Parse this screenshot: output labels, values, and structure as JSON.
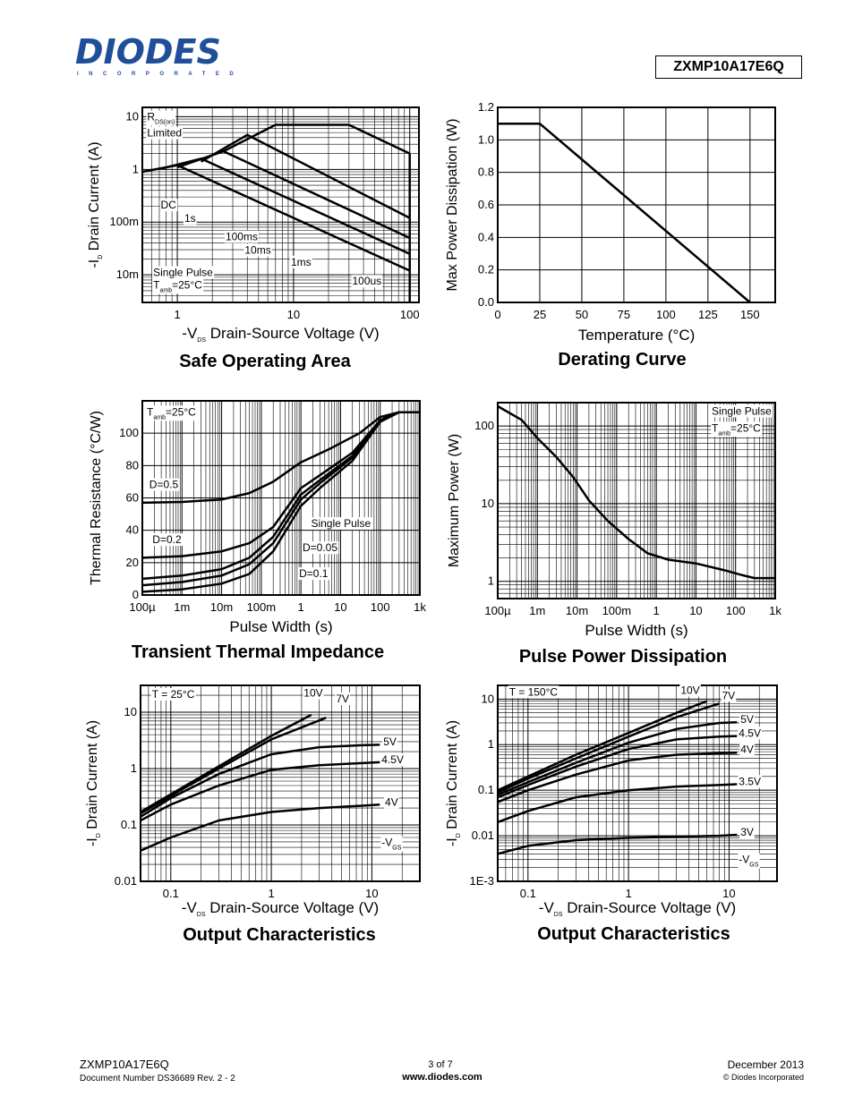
{
  "header": {
    "logo_text": "DIODES",
    "logo_sub": "INCORPORATED",
    "part_number": "ZXMP10A17E6Q"
  },
  "footer": {
    "part": "ZXMP10A17E6Q",
    "doc": "Document Number DS36689  Rev. 2 - 2",
    "page": "3 of 7",
    "site": "www.diodes.com",
    "date": "December 2013",
    "copyright": "© Diodes Incorporated"
  },
  "chart_data": [
    {
      "id": "soa",
      "type": "line",
      "title": "Safe Operating Area",
      "xlabel_prefix": "-V",
      "xlabel_sub": "DS",
      "xlabel": "Drain-Source Voltage (V)",
      "ylabel_prefix": "-I",
      "ylabel_sub": "D",
      "ylabel": "Drain Current (A)",
      "xscale": "log",
      "yscale": "log",
      "xlim": [
        0.5,
        120
      ],
      "ylim": [
        0.003,
        15
      ],
      "xticks": [
        {
          "v": 1,
          "l": "1"
        },
        {
          "v": 10,
          "l": "10"
        },
        {
          "v": 100,
          "l": "100"
        }
      ],
      "yticks": [
        {
          "v": 10,
          "l": "10"
        },
        {
          "v": 1,
          "l": "1"
        },
        {
          "v": 0.1,
          "l": "100m"
        },
        {
          "v": 0.01,
          "l": "10m"
        }
      ],
      "series": [
        {
          "x": [
            0.5,
            1,
            100
          ],
          "y": [
            0.9,
            1.2,
            0.012
          ]
        },
        {
          "x": [
            0.75,
            1.6,
            100
          ],
          "y": [
            1.05,
            1.6,
            0.025
          ]
        },
        {
          "x": [
            1,
            2.5,
            100
          ],
          "y": [
            1.1,
            2.2,
            0.05
          ]
        },
        {
          "x": [
            1.6,
            4,
            100
          ],
          "y": [
            1.4,
            4.5,
            0.12
          ]
        },
        {
          "x": [
            2.5,
            7,
            30,
            100
          ],
          "y": [
            2.2,
            7,
            7,
            2
          ]
        },
        {
          "x": [
            100,
            100
          ],
          "y": [
            2,
            0.003
          ]
        }
      ],
      "annotations": [
        {
          "text": "R",
          "sub": "DS(on)",
          "x": 0.55,
          "y": 8.5
        },
        {
          "text": "Limited",
          "x": 0.55,
          "y": 4.2
        },
        {
          "text": "DC",
          "x": 0.72,
          "y": 0.18
        },
        {
          "text": "1s",
          "x": 1.15,
          "y": 0.1
        },
        {
          "text": "100ms",
          "x": 2.6,
          "y": 0.045
        },
        {
          "text": "10ms",
          "x": 3.8,
          "y": 0.025
        },
        {
          "text": "1ms",
          "x": 9.5,
          "y": 0.015
        },
        {
          "text": "100us",
          "x": 32,
          "y": 0.0065
        },
        {
          "text": "Single Pulse",
          "x": 0.62,
          "y": 0.0095
        },
        {
          "text": "T",
          "sub": "amb",
          "after": "=25°C",
          "x": 0.62,
          "y": 0.0055
        }
      ]
    },
    {
      "id": "derating",
      "type": "line",
      "title": "Derating Curve",
      "xlabel": "Temperature (°C)",
      "ylabel": "Max Power Dissipation (W)",
      "xscale": "linear",
      "yscale": "linear",
      "xlim": [
        0,
        165
      ],
      "ylim": [
        0,
        1.2
      ],
      "xticks": [
        {
          "v": 0,
          "l": "0"
        },
        {
          "v": 25,
          "l": "25"
        },
        {
          "v": 50,
          "l": "50"
        },
        {
          "v": 75,
          "l": "75"
        },
        {
          "v": 100,
          "l": "100"
        },
        {
          "v": 125,
          "l": "125"
        },
        {
          "v": 150,
          "l": "150"
        }
      ],
      "yticks": [
        {
          "v": 0,
          "l": "0.0"
        },
        {
          "v": 0.2,
          "l": "0.2"
        },
        {
          "v": 0.4,
          "l": "0.4"
        },
        {
          "v": 0.6,
          "l": "0.6"
        },
        {
          "v": 0.8,
          "l": "0.8"
        },
        {
          "v": 1.0,
          "l": "1.0"
        },
        {
          "v": 1.2,
          "l": "1.2"
        }
      ],
      "series": [
        {
          "x": [
            0,
            25,
            150
          ],
          "y": [
            1.1,
            1.1,
            0
          ]
        }
      ],
      "annotations": []
    },
    {
      "id": "thermal",
      "type": "line",
      "title": "Transient Thermal Impedance",
      "xlabel": "Pulse Width (s)",
      "ylabel": "Thermal Resistance (°C/W)",
      "xscale": "log",
      "yscale": "linear",
      "xlim": [
        0.0001,
        1000
      ],
      "ylim": [
        0,
        120
      ],
      "xticks": [
        {
          "v": 0.0001,
          "l": "100µ"
        },
        {
          "v": 0.001,
          "l": "1m"
        },
        {
          "v": 0.01,
          "l": "10m"
        },
        {
          "v": 0.1,
          "l": "100m"
        },
        {
          "v": 1,
          "l": "1"
        },
        {
          "v": 10,
          "l": "10"
        },
        {
          "v": 100,
          "l": "100"
        },
        {
          "v": 1000,
          "l": "1k"
        }
      ],
      "yticks": [
        {
          "v": 0,
          "l": "0"
        },
        {
          "v": 20,
          "l": "20"
        },
        {
          "v": 40,
          "l": "40"
        },
        {
          "v": 60,
          "l": "60"
        },
        {
          "v": 80,
          "l": "80"
        },
        {
          "v": 100,
          "l": "100"
        }
      ],
      "series": [
        {
          "x": [
            0.0001,
            0.001,
            0.01,
            0.05,
            0.2,
            1,
            5,
            30,
            100,
            300,
            1000
          ],
          "y": [
            57,
            57.5,
            59,
            63,
            70,
            82,
            90,
            100,
            110,
            113,
            113
          ]
        },
        {
          "x": [
            0.0001,
            0.001,
            0.01,
            0.05,
            0.2,
            1,
            3,
            20,
            100,
            300,
            1000
          ],
          "y": [
            23,
            24,
            27,
            32,
            42,
            66,
            74,
            88,
            108,
            113,
            113
          ]
        },
        {
          "x": [
            0.0001,
            0.001,
            0.01,
            0.05,
            0.2,
            1,
            3,
            20,
            100,
            300,
            1000
          ],
          "y": [
            10,
            12,
            16,
            23,
            36,
            62,
            71,
            86,
            108,
            113,
            113
          ]
        },
        {
          "x": [
            0.0001,
            0.001,
            0.01,
            0.05,
            0.2,
            1,
            3,
            20,
            100,
            300,
            1000
          ],
          "y": [
            6,
            8,
            12,
            19,
            32,
            59,
            69,
            85,
            108,
            113,
            113
          ]
        },
        {
          "x": [
            0.0001,
            0.001,
            0.01,
            0.05,
            0.2,
            1,
            3,
            20,
            100,
            300,
            1000
          ],
          "y": [
            2,
            3.5,
            7,
            13,
            27,
            55,
            66,
            83,
            107,
            113,
            113
          ]
        }
      ],
      "annotations": [
        {
          "text": "T",
          "sub": "amb",
          "after": "=25°C",
          "x": 0.00013,
          "y": 111
        },
        {
          "text": "D=0.5",
          "x": 0.00015,
          "y": 66
        },
        {
          "text": "D=0.2",
          "x": 0.00018,
          "y": 32
        },
        {
          "text": "Single Pulse",
          "x": 1.8,
          "y": 42
        },
        {
          "text": "D=0.05",
          "x": 1.1,
          "y": 27
        },
        {
          "text": "D=0.1",
          "x": 0.9,
          "y": 11
        }
      ]
    },
    {
      "id": "pulse",
      "type": "line",
      "title": "Pulse Power Dissipation",
      "xlabel": "Pulse Width (s)",
      "ylabel": "Maximum Power (W)",
      "xscale": "log",
      "yscale": "log",
      "xlim": [
        0.0001,
        1000
      ],
      "ylim": [
        0.6,
        200
      ],
      "xticks": [
        {
          "v": 0.0001,
          "l": "100µ"
        },
        {
          "v": 0.001,
          "l": "1m"
        },
        {
          "v": 0.01,
          "l": "10m"
        },
        {
          "v": 0.1,
          "l": "100m"
        },
        {
          "v": 1,
          "l": "1"
        },
        {
          "v": 10,
          "l": "10"
        },
        {
          "v": 100,
          "l": "100"
        },
        {
          "v": 1000,
          "l": "1k"
        }
      ],
      "yticks": [
        {
          "v": 1,
          "l": "1"
        },
        {
          "v": 10,
          "l": "10"
        },
        {
          "v": 100,
          "l": "100"
        }
      ],
      "series": [
        {
          "x": [
            0.0001,
            0.0004,
            0.001,
            0.003,
            0.008,
            0.02,
            0.06,
            0.2,
            0.6,
            2,
            10,
            50,
            150,
            300,
            1000
          ],
          "y": [
            180,
            120,
            70,
            40,
            22,
            11,
            6,
            3.5,
            2.3,
            1.9,
            1.7,
            1.4,
            1.2,
            1.1,
            1.1
          ]
        }
      ],
      "annotations": [
        {
          "text": "Single Pulse",
          "x": 25,
          "y": 140
        },
        {
          "text": "T",
          "sub": "amb",
          "after": "=25°C",
          "x": 25,
          "y": 85
        }
      ]
    },
    {
      "id": "out25",
      "type": "line",
      "title": "Output Characteristics",
      "xlabel_prefix": "-V",
      "xlabel_sub": "DS",
      "xlabel": "Drain-Source Voltage (V)",
      "ylabel_prefix": "-I",
      "ylabel_sub": "D",
      "ylabel": "Drain Current (A)",
      "xscale": "log",
      "yscale": "log",
      "xlim": [
        0.05,
        30
      ],
      "ylim": [
        0.01,
        30
      ],
      "xticks": [
        {
          "v": 0.1,
          "l": "0.1"
        },
        {
          "v": 1,
          "l": "1"
        },
        {
          "v": 10,
          "l": "10"
        }
      ],
      "yticks": [
        {
          "v": 10,
          "l": "10"
        },
        {
          "v": 1,
          "l": "1"
        },
        {
          "v": 0.1,
          "l": "0.1"
        },
        {
          "v": 0.01,
          "l": "0.01"
        }
      ],
      "series": [
        {
          "name": "10V",
          "x": [
            0.05,
            0.1,
            0.3,
            1,
            2.5
          ],
          "y": [
            0.17,
            0.35,
            1.1,
            3.8,
            9
          ]
        },
        {
          "name": "7V",
          "x": [
            0.05,
            0.1,
            0.3,
            1,
            3.5
          ],
          "y": [
            0.16,
            0.33,
            1.0,
            3.3,
            8
          ]
        },
        {
          "name": "5V",
          "x": [
            0.05,
            0.1,
            0.3,
            1,
            3,
            8,
            12
          ],
          "y": [
            0.14,
            0.3,
            0.8,
            1.8,
            2.4,
            2.6,
            2.65
          ]
        },
        {
          "name": "4.5V",
          "x": [
            0.05,
            0.1,
            0.3,
            1,
            3,
            8,
            12
          ],
          "y": [
            0.12,
            0.23,
            0.5,
            0.95,
            1.15,
            1.25,
            1.3
          ]
        },
        {
          "name": "4V",
          "x": [
            0.05,
            0.1,
            0.3,
            1,
            3,
            8,
            12
          ],
          "y": [
            0.035,
            0.06,
            0.12,
            0.17,
            0.2,
            0.22,
            0.23
          ]
        }
      ],
      "annotations": [
        {
          "text": "T = 25°C",
          "x": 0.065,
          "y": 18
        },
        {
          "text": "10V",
          "x": 2.1,
          "y": 19
        },
        {
          "text": "7V",
          "x": 4.4,
          "y": 15
        },
        {
          "text": "5V",
          "x": 13,
          "y": 2.6
        },
        {
          "text": "4.5V",
          "x": 12.5,
          "y": 1.25
        },
        {
          "text": "4V",
          "x": 13.5,
          "y": 0.22
        },
        {
          "text": "-V",
          "sub": "GS",
          "x": 12.5,
          "y": 0.042
        }
      ]
    },
    {
      "id": "out150",
      "type": "line",
      "title": "Output Characteristics",
      "xlabel_prefix": "-V",
      "xlabel_sub": "DS",
      "xlabel": "Drain-Source Voltage (V)",
      "ylabel_prefix": "-I",
      "ylabel_sub": "D",
      "ylabel": "Drain Current (A)",
      "xscale": "log",
      "yscale": "log",
      "xlim": [
        0.05,
        30
      ],
      "ylim": [
        0.001,
        20
      ],
      "xticks": [
        {
          "v": 0.1,
          "l": "0.1"
        },
        {
          "v": 1,
          "l": "1"
        },
        {
          "v": 10,
          "l": "10"
        }
      ],
      "yticks": [
        {
          "v": 10,
          "l": "10"
        },
        {
          "v": 1,
          "l": "1"
        },
        {
          "v": 0.1,
          "l": "0.1"
        },
        {
          "v": 0.01,
          "l": "0.01"
        },
        {
          "v": 0.001,
          "l": "1E-3"
        }
      ],
      "series": [
        {
          "name": "10V",
          "x": [
            0.05,
            0.1,
            0.3,
            1,
            3,
            6
          ],
          "y": [
            0.1,
            0.2,
            0.6,
            1.8,
            5,
            9
          ]
        },
        {
          "name": "7V",
          "x": [
            0.05,
            0.1,
            0.3,
            1,
            3,
            8
          ],
          "y": [
            0.09,
            0.18,
            0.5,
            1.5,
            4,
            8
          ]
        },
        {
          "name": "5V",
          "x": [
            0.05,
            0.1,
            0.3,
            1,
            3,
            8,
            12
          ],
          "y": [
            0.08,
            0.15,
            0.4,
            1.1,
            2.2,
            3,
            3.1
          ]
        },
        {
          "name": "4.5V",
          "x": [
            0.05,
            0.1,
            0.3,
            1,
            3,
            8,
            12
          ],
          "y": [
            0.07,
            0.13,
            0.33,
            0.8,
            1.3,
            1.5,
            1.55
          ]
        },
        {
          "name": "4V",
          "x": [
            0.05,
            0.1,
            0.3,
            1,
            3,
            8,
            12
          ],
          "y": [
            0.055,
            0.1,
            0.22,
            0.45,
            0.6,
            0.65,
            0.66
          ]
        },
        {
          "name": "3.5V",
          "x": [
            0.05,
            0.1,
            0.3,
            1,
            3,
            8,
            12
          ],
          "y": [
            0.02,
            0.035,
            0.07,
            0.1,
            0.12,
            0.13,
            0.135
          ]
        },
        {
          "name": "3V",
          "x": [
            0.05,
            0.1,
            0.3,
            1,
            3,
            8,
            12
          ],
          "y": [
            0.004,
            0.006,
            0.008,
            0.009,
            0.0095,
            0.01,
            0.0105
          ]
        }
      ],
      "annotations": [
        {
          "text": "T = 150°C",
          "x": 0.065,
          "y": 12
        },
        {
          "text": "10V",
          "x": 3.3,
          "y": 13
        },
        {
          "text": "7V",
          "x": 8.5,
          "y": 10
        },
        {
          "text": "5V",
          "x": 13,
          "y": 3.0
        },
        {
          "text": "4.5V",
          "x": 12.5,
          "y": 1.5
        },
        {
          "text": "4V",
          "x": 13,
          "y": 0.66
        },
        {
          "text": "3.5V",
          "x": 12.5,
          "y": 0.13
        },
        {
          "text": "3V",
          "x": 13,
          "y": 0.01
        },
        {
          "text": "-V",
          "sub": "GS",
          "x": 12.5,
          "y": 0.0025
        }
      ]
    }
  ]
}
